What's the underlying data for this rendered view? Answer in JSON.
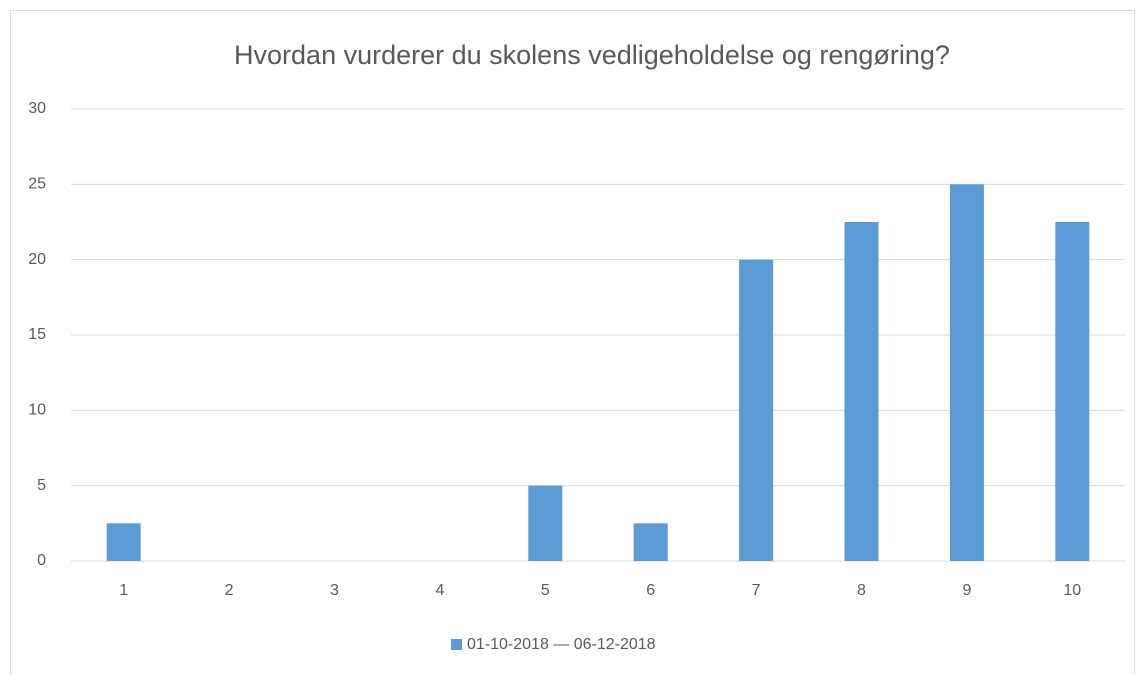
{
  "chart_data": {
    "type": "bar",
    "title": "Hvordan vurderer du skolens vedligeholdelse og rengøring?",
    "categories": [
      "1",
      "2",
      "3",
      "4",
      "5",
      "6",
      "7",
      "8",
      "9",
      "10"
    ],
    "series": [
      {
        "name": "01-10-2018 — 06-12-2018",
        "color": "#5b9bd5",
        "values": [
          2.5,
          0,
          0,
          0,
          5,
          2.5,
          20,
          22.5,
          25,
          22.5
        ]
      }
    ],
    "ylim": [
      0,
      30
    ],
    "yticks": [
      0,
      5,
      10,
      15,
      20,
      25,
      30
    ],
    "grid": true,
    "legend": "bottom"
  }
}
